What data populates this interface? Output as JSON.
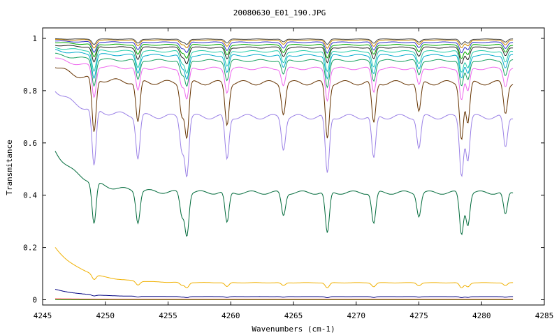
{
  "chart_data": {
    "type": "line",
    "title": "20080630_E01_190.JPG",
    "xlabel": "Wavenumbers (cm-1)",
    "ylabel": "Transmitance",
    "xlim": [
      4245,
      4285
    ],
    "ylim": [
      -0.02,
      1.04
    ],
    "xticks": [
      4245,
      4250,
      4255,
      4260,
      4265,
      4270,
      4275,
      4280,
      4285
    ],
    "xtick_labels": [
      "4245",
      "4250",
      "4255",
      "4260",
      "4265",
      "4270",
      "4275",
      "4280",
      "4285"
    ],
    "yticks": [
      0,
      0.2,
      0.4,
      0.6,
      0.8,
      1
    ],
    "ytick_labels": [
      "0",
      "0.2",
      "0.4",
      "0.6",
      "0.8",
      "1"
    ],
    "grid": false,
    "legend": "none",
    "x_range": [
      4246,
      4282.5
    ],
    "absorption_lines": [
      4249.1,
      4252.6,
      4256.1,
      4256.5,
      4259.7,
      4264.2,
      4267.7,
      4271.4,
      4275.0,
      4278.4,
      4278.9,
      4281.9
    ],
    "series": [
      {
        "color": "#22aa22",
        "start": 0.0,
        "base": 0.0,
        "depth": 0.0
      },
      {
        "color": "#ff3333",
        "start": 0.004,
        "base": 0.002,
        "depth": 0.0
      },
      {
        "color": "#000080",
        "start": 0.04,
        "base": 0.012,
        "depth": 0.004
      },
      {
        "color": "#f0b000",
        "start": 0.2,
        "base": 0.065,
        "depth": 0.02
      },
      {
        "color": "#006a3a",
        "start": 0.57,
        "base": 0.41,
        "depth": 0.16
      },
      {
        "color": "#9a80e6",
        "start": 0.805,
        "base": 0.7,
        "depth": 0.22
      },
      {
        "color": "#663300",
        "start": 0.895,
        "base": 0.83,
        "depth": 0.21
      },
      {
        "color": "#ee66ee",
        "start": 0.925,
        "base": 0.885,
        "depth": 0.12
      },
      {
        "color": "#18a060",
        "start": 0.94,
        "base": 0.915,
        "depth": 0.1
      },
      {
        "color": "#00aacc",
        "start": 0.955,
        "base": 0.935,
        "depth": 0.09
      },
      {
        "color": "#22ccaa",
        "start": 0.965,
        "base": 0.95,
        "depth": 0.08
      },
      {
        "color": "#202020",
        "start": 0.975,
        "base": 0.965,
        "depth": 0.06
      },
      {
        "color": "#00aa00",
        "start": 0.985,
        "base": 0.975,
        "depth": 0.05
      },
      {
        "color": "#3333cc",
        "start": 0.99,
        "base": 0.985,
        "depth": 0.04
      },
      {
        "color": "#cc8800",
        "start": 0.995,
        "base": 0.993,
        "depth": 0.03
      },
      {
        "color": "#444444",
        "start": 0.998,
        "base": 0.997,
        "depth": 0.02
      }
    ]
  }
}
